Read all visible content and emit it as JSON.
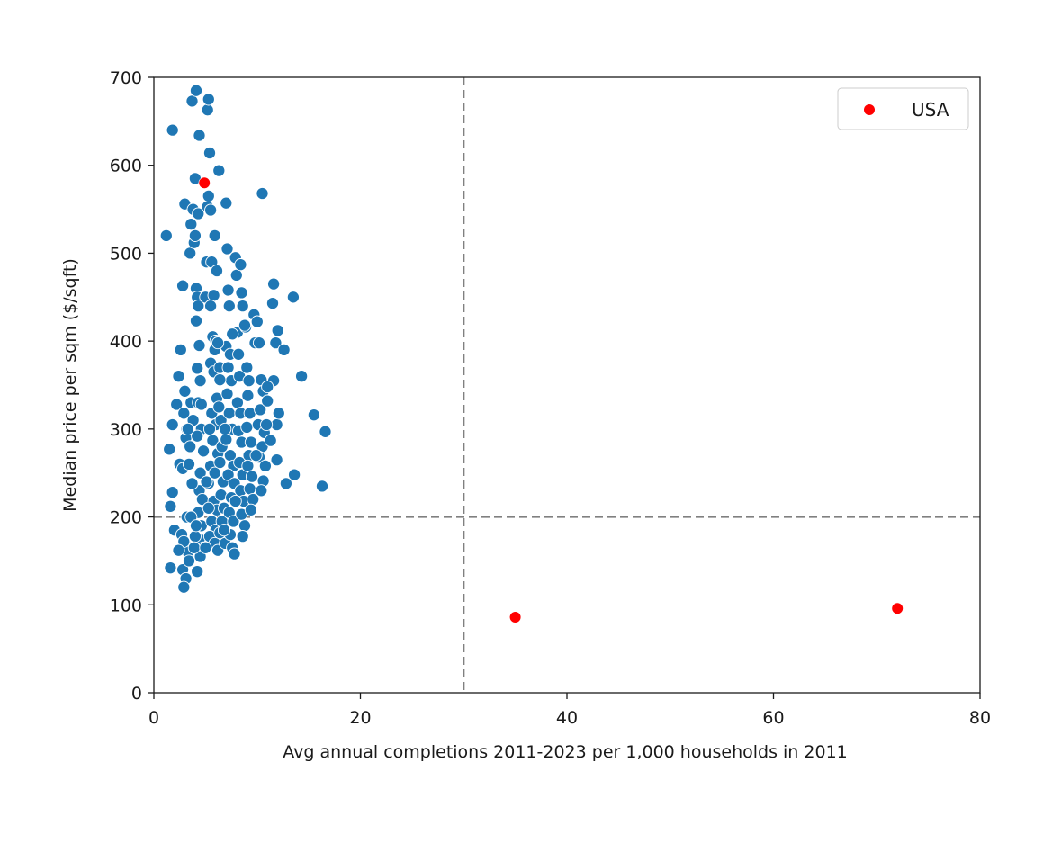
{
  "chart_data": {
    "type": "scatter",
    "title": "",
    "xlabel": "Avg annual completions 2011-2023 per 1,000 households in 2011",
    "ylabel": "Median price per sqm ($/sqft)",
    "xlim": [
      0,
      80
    ],
    "ylim": [
      0,
      700
    ],
    "x_ticks": [
      "0",
      "20",
      "40",
      "60",
      "80"
    ],
    "y_ticks": [
      "0",
      "100",
      "200",
      "300",
      "400",
      "500",
      "600",
      "700"
    ],
    "grid": false,
    "legend_position": "top-right",
    "reference_lines": [
      {
        "orientation": "vertical",
        "x": 30,
        "style": "dashed",
        "color": "#808080"
      },
      {
        "orientation": "horizontal",
        "y": 200,
        "style": "dashed",
        "color": "#808080"
      }
    ],
    "series": [
      {
        "color": "#1f77b4",
        "points": [
          [
            1.2,
            520
          ],
          [
            1.8,
            640
          ],
          [
            1.5,
            277
          ],
          [
            1.8,
            305
          ],
          [
            1.6,
            212
          ],
          [
            1.8,
            228
          ],
          [
            2.0,
            185
          ],
          [
            1.6,
            142
          ],
          [
            2.2,
            328
          ],
          [
            2.4,
            360
          ],
          [
            2.6,
            390
          ],
          [
            2.8,
            463
          ],
          [
            3.0,
            556
          ],
          [
            2.5,
            260
          ],
          [
            2.8,
            255
          ],
          [
            3.1,
            290
          ],
          [
            2.9,
            318
          ],
          [
            3.2,
            300
          ],
          [
            3.0,
            343
          ],
          [
            3.4,
            260
          ],
          [
            3.2,
            200
          ],
          [
            2.7,
            180
          ],
          [
            3.0,
            170
          ],
          [
            3.3,
            160
          ],
          [
            2.8,
            140
          ],
          [
            3.1,
            130
          ],
          [
            2.9,
            120
          ],
          [
            3.4,
            150
          ],
          [
            3.6,
            330
          ],
          [
            3.8,
            310
          ],
          [
            3.5,
            500
          ],
          [
            3.6,
            533
          ],
          [
            3.8,
            550
          ],
          [
            3.9,
            512
          ],
          [
            4.0,
            520
          ],
          [
            4.1,
            460
          ],
          [
            4.2,
            450
          ],
          [
            4.3,
            440
          ],
          [
            4.1,
            423
          ],
          [
            4.4,
            395
          ],
          [
            4.2,
            369
          ],
          [
            4.5,
            355
          ],
          [
            4.3,
            330
          ],
          [
            4.6,
            300
          ],
          [
            4.2,
            292
          ],
          [
            4.5,
            250
          ],
          [
            4.4,
            230
          ],
          [
            4.7,
            220
          ],
          [
            4.3,
            205
          ],
          [
            4.6,
            190
          ],
          [
            4.4,
            175
          ],
          [
            4.8,
            165
          ],
          [
            4.5,
            155
          ],
          [
            4.2,
            138
          ],
          [
            3.7,
            673
          ],
          [
            4.1,
            685
          ],
          [
            4.4,
            634
          ],
          [
            4.0,
            585
          ],
          [
            4.3,
            545
          ],
          [
            5.0,
            450
          ],
          [
            5.1,
            490
          ],
          [
            5.2,
            553
          ],
          [
            5.3,
            565
          ],
          [
            5.5,
            549
          ],
          [
            5.4,
            614
          ],
          [
            5.2,
            663
          ],
          [
            5.3,
            675
          ],
          [
            5.6,
            490
          ],
          [
            5.8,
            452
          ],
          [
            5.9,
            520
          ],
          [
            5.7,
            405
          ],
          [
            6.0,
            400
          ],
          [
            5.9,
            390
          ],
          [
            5.5,
            375
          ],
          [
            5.8,
            365
          ],
          [
            6.1,
            335
          ],
          [
            5.6,
            318
          ],
          [
            6.0,
            305
          ],
          [
            5.4,
            300
          ],
          [
            5.7,
            287
          ],
          [
            6.2,
            272
          ],
          [
            5.5,
            258
          ],
          [
            5.9,
            250
          ],
          [
            5.3,
            238
          ],
          [
            5.8,
            218
          ],
          [
            6.1,
            208
          ],
          [
            5.6,
            195
          ],
          [
            6.0,
            185
          ],
          [
            5.4,
            178
          ],
          [
            5.9,
            170
          ],
          [
            6.2,
            162
          ],
          [
            6.3,
            594
          ],
          [
            6.1,
            480
          ],
          [
            6.4,
            370
          ],
          [
            6.3,
            325
          ],
          [
            6.5,
            310
          ],
          [
            6.6,
            280
          ],
          [
            6.4,
            262
          ],
          [
            6.7,
            240
          ],
          [
            6.5,
            225
          ],
          [
            6.8,
            210
          ],
          [
            6.6,
            195
          ],
          [
            6.4,
            182
          ],
          [
            6.9,
            170
          ],
          [
            7.0,
            557
          ],
          [
            7.1,
            505
          ],
          [
            7.2,
            458
          ],
          [
            7.3,
            440
          ],
          [
            7.0,
            394
          ],
          [
            7.4,
            385
          ],
          [
            7.2,
            370
          ],
          [
            7.5,
            355
          ],
          [
            7.1,
            340
          ],
          [
            7.3,
            318
          ],
          [
            7.6,
            300
          ],
          [
            7.0,
            288
          ],
          [
            7.4,
            270
          ],
          [
            7.7,
            258
          ],
          [
            7.2,
            248
          ],
          [
            7.8,
            238
          ],
          [
            7.5,
            222
          ],
          [
            7.3,
            205
          ],
          [
            7.7,
            195
          ],
          [
            7.4,
            180
          ],
          [
            7.6,
            165
          ],
          [
            7.8,
            158
          ],
          [
            7.9,
            495
          ],
          [
            8.0,
            475
          ],
          [
            8.1,
            410
          ],
          [
            8.2,
            385
          ],
          [
            8.3,
            360
          ],
          [
            8.1,
            330
          ],
          [
            8.4,
            318
          ],
          [
            8.2,
            298
          ],
          [
            8.5,
            285
          ],
          [
            8.3,
            262
          ],
          [
            8.6,
            248
          ],
          [
            8.4,
            230
          ],
          [
            8.7,
            218
          ],
          [
            8.5,
            203
          ],
          [
            8.8,
            190
          ],
          [
            8.6,
            178
          ],
          [
            8.4,
            487
          ],
          [
            8.5,
            455
          ],
          [
            8.6,
            440
          ],
          [
            8.9,
            416
          ],
          [
            9.0,
            370
          ],
          [
            9.2,
            355
          ],
          [
            9.1,
            338
          ],
          [
            9.3,
            318
          ],
          [
            9.0,
            302
          ],
          [
            9.4,
            285
          ],
          [
            9.2,
            270
          ],
          [
            9.1,
            258
          ],
          [
            9.5,
            246
          ],
          [
            9.3,
            232
          ],
          [
            9.6,
            220
          ],
          [
            9.4,
            208
          ],
          [
            9.7,
            430
          ],
          [
            9.8,
            398
          ],
          [
            10.0,
            422
          ],
          [
            10.2,
            398
          ],
          [
            10.4,
            356
          ],
          [
            10.6,
            343
          ],
          [
            10.3,
            322
          ],
          [
            10.1,
            305
          ],
          [
            10.7,
            296
          ],
          [
            10.5,
            280
          ],
          [
            10.2,
            268
          ],
          [
            10.8,
            258
          ],
          [
            10.6,
            241
          ],
          [
            10.4,
            230
          ],
          [
            11.0,
            332
          ],
          [
            11.3,
            287
          ],
          [
            11.5,
            443
          ],
          [
            11.6,
            465
          ],
          [
            11.8,
            398
          ],
          [
            12.0,
            412
          ],
          [
            11.9,
            305
          ],
          [
            12.1,
            318
          ],
          [
            11.9,
            265
          ],
          [
            12.6,
            390
          ],
          [
            12.8,
            238
          ],
          [
            13.5,
            450
          ],
          [
            13.6,
            248
          ],
          [
            14.3,
            360
          ],
          [
            15.5,
            316
          ],
          [
            16.3,
            235
          ],
          [
            16.6,
            297
          ],
          [
            11.6,
            355
          ],
          [
            11.0,
            348
          ],
          [
            10.5,
            568
          ],
          [
            4.0,
            178
          ],
          [
            3.6,
            200
          ],
          [
            3.9,
            165
          ],
          [
            2.9,
            172
          ],
          [
            4.1,
            190
          ],
          [
            5.1,
            240
          ],
          [
            5.3,
            210
          ],
          [
            6.9,
            300
          ],
          [
            7.6,
            408
          ],
          [
            6.4,
            356
          ],
          [
            3.3,
            300
          ],
          [
            3.7,
            238
          ],
          [
            2.4,
            162
          ],
          [
            4.6,
            328
          ],
          [
            8.8,
            418
          ],
          [
            6.8,
            185
          ],
          [
            7.9,
            218
          ],
          [
            5.0,
            165
          ],
          [
            4.8,
            275
          ],
          [
            3.5,
            280
          ],
          [
            6.2,
            398
          ],
          [
            5.5,
            440
          ],
          [
            9.9,
            270
          ],
          [
            10.9,
            305
          ]
        ]
      },
      {
        "name": "USA",
        "color": "#ff0000",
        "points": [
          [
            4.9,
            580
          ],
          [
            35.0,
            86
          ],
          [
            72.0,
            96
          ]
        ]
      }
    ]
  }
}
